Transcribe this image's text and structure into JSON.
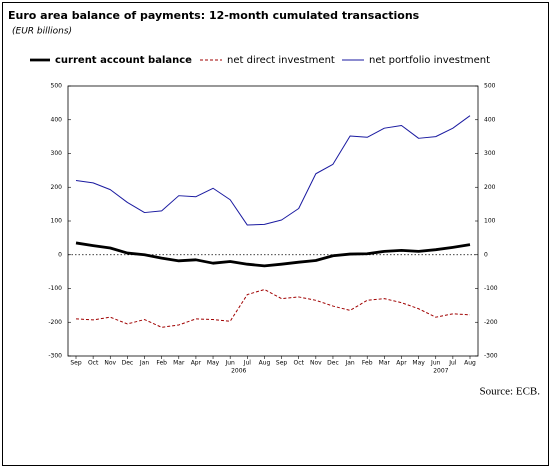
{
  "chart_data": {
    "type": "line",
    "title": "Euro area balance of payments: 12-month cumulated transactions",
    "subtitle": "(EUR billions)",
    "source": "Source: ECB.",
    "categories": [
      "Sep",
      "Oct",
      "Nov",
      "Dec",
      "Jan",
      "Feb",
      "Mar",
      "Apr",
      "May",
      "Jun",
      "Jul",
      "Aug",
      "Sep",
      "Oct",
      "Nov",
      "Dec",
      "Jan",
      "Feb",
      "Mar",
      "Apr",
      "May",
      "Jun",
      "Jul",
      "Aug"
    ],
    "year_labels": [
      "2006",
      "2007"
    ],
    "series": [
      {
        "name": "current account balance",
        "color": "#000000",
        "style": "thick",
        "values": [
          35,
          27,
          20,
          5,
          0,
          -10,
          -18,
          -15,
          -25,
          -20,
          -28,
          -33,
          -28,
          -22,
          -17,
          -3,
          2,
          3,
          10,
          13,
          10,
          15,
          22,
          30
        ]
      },
      {
        "name": "net direct investment",
        "color": "#a00000",
        "style": "dashed",
        "values": [
          -190,
          -193,
          -185,
          -205,
          -192,
          -215,
          -208,
          -190,
          -192,
          -197,
          -118,
          -103,
          -130,
          -125,
          -135,
          -152,
          -165,
          -135,
          -130,
          -142,
          -160,
          -185,
          -175,
          -178
        ]
      },
      {
        "name": "net portfolio investment",
        "color": "#1a1aa0",
        "style": "thin",
        "values": [
          220,
          213,
          193,
          155,
          125,
          130,
          175,
          172,
          197,
          163,
          88,
          90,
          103,
          137,
          240,
          268,
          352,
          348,
          375,
          383,
          345,
          350,
          375,
          412
        ]
      }
    ],
    "ylim": [
      -300,
      500
    ],
    "yticks": [
      -300,
      -200,
      -100,
      0,
      100,
      200,
      300,
      400,
      500
    ],
    "y2lim": [
      -300,
      500
    ],
    "y2ticks": [
      -300,
      -200,
      -100,
      0,
      100,
      200,
      300,
      400,
      500
    ],
    "zero_line": true
  }
}
